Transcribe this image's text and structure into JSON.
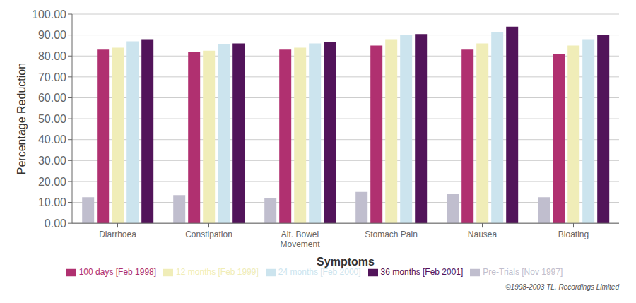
{
  "chart_data": {
    "type": "bar",
    "categories": [
      "Diarrhoea",
      "Constipation",
      "Alt. Bowel\nMovement",
      "Stomach Pain",
      "Nausea",
      "Bloating"
    ],
    "series": [
      {
        "name": "Pre-Trials [Nov 1997]",
        "color": "#c0bece",
        "values": [
          12.5,
          13.5,
          12.0,
          15.0,
          14.0,
          12.5
        ]
      },
      {
        "name": "100 days [Feb 1998]",
        "color": "#b03070",
        "values": [
          83.0,
          82.0,
          83.0,
          85.0,
          83.0,
          81.0
        ]
      },
      {
        "name": "12 months [Feb 1999]",
        "color": "#f0edb8",
        "values": [
          84.0,
          82.5,
          84.0,
          88.0,
          86.0,
          85.0
        ]
      },
      {
        "name": "24 months [Feb 2000]",
        "color": "#cce4ee",
        "values": [
          87.0,
          85.5,
          86.0,
          90.0,
          91.5,
          88.0
        ]
      },
      {
        "name": "36 months [Feb 2001]",
        "color": "#52145a",
        "values": [
          88.0,
          86.0,
          86.5,
          90.5,
          94.0,
          90.0
        ]
      }
    ],
    "xlabel": "Symptoms",
    "ylabel": "Percentage Reduction",
    "ylim": [
      0,
      100
    ],
    "yticks": [
      {
        "value": 0,
        "label": "0.00"
      },
      {
        "value": 10,
        "label": "10.00"
      },
      {
        "value": 20,
        "label": "20.00"
      },
      {
        "value": 30,
        "label": "30.00"
      },
      {
        "value": 40,
        "label": "40.00"
      },
      {
        "value": 50,
        "label": "50.00"
      },
      {
        "value": 60,
        "label": "60.00"
      },
      {
        "value": 70,
        "label": "70.00"
      },
      {
        "value": 80,
        "label": "80.00"
      },
      {
        "value": 90,
        "label": "90.00"
      },
      {
        "value": 100,
        "label": "100.00"
      }
    ],
    "grid": true,
    "legend": "bottom",
    "annotations": [
      "©1998-2003 TL. Recordings Limited"
    ]
  }
}
